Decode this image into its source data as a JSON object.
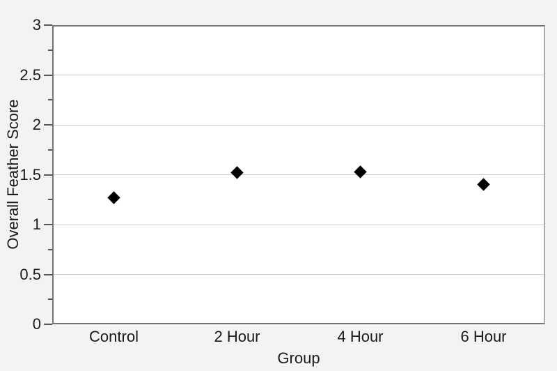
{
  "chart_data": {
    "type": "scatter",
    "title": "",
    "xlabel": "Group",
    "ylabel": "Overall Feather Score",
    "categories": [
      "Control",
      "2 Hour",
      "4 Hour",
      "6 Hour"
    ],
    "values": [
      1.27,
      1.52,
      1.53,
      1.4
    ],
    "ylim": [
      0,
      3
    ],
    "y_major_ticks": [
      {
        "value": 0,
        "label": "0"
      },
      {
        "value": 0.5,
        "label": "0.5"
      },
      {
        "value": 1,
        "label": "1"
      },
      {
        "value": 1.5,
        "label": "1.5"
      },
      {
        "value": 2,
        "label": "2"
      },
      {
        "value": 2.5,
        "label": "2.5"
      },
      {
        "value": 3,
        "label": "3"
      }
    ],
    "y_minor_ticks": [
      0.25,
      0.75,
      1.25,
      1.75,
      2.25,
      2.75
    ],
    "grid": true,
    "legend": false,
    "marker": "diamond",
    "marker_color": "#000000"
  },
  "colors": {
    "page_bg": "#f3f3f3",
    "plot_bg": "#ffffff",
    "grid": "#cdcdcd",
    "frame": "#747474",
    "frame_right": "#ababab",
    "tick": "#565656",
    "text": "#1a1a1a"
  }
}
